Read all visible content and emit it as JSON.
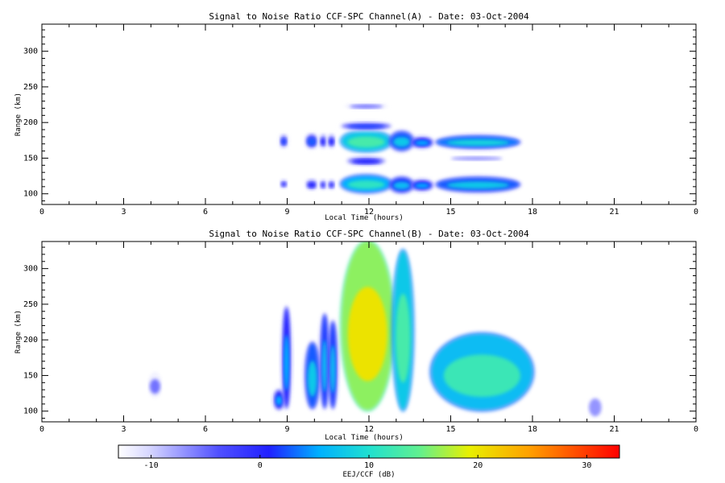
{
  "chart_data": [
    {
      "type": "heatmap",
      "title": "Signal to Noise Ratio CCF-SPC Channel(A) - Date: 03-Oct-2004",
      "xlabel": "Local Time (hours)",
      "ylabel": "Range (km)",
      "xlim": [
        0,
        24
      ],
      "ylim": [
        85,
        338
      ],
      "x_ticks": [
        "0",
        "3",
        "6",
        "9",
        "12",
        "15",
        "18",
        "21",
        "0"
      ],
      "y_ticks": [
        100,
        150,
        200,
        250,
        300
      ],
      "z_units": "dB",
      "blobs": [
        {
          "t0": 8.75,
          "t1": 9.0,
          "r0": 108,
          "r1": 120,
          "snr": -4
        },
        {
          "t0": 8.75,
          "t1": 9.0,
          "r0": 166,
          "r1": 182,
          "snr": -2
        },
        {
          "t0": 9.7,
          "t1": 10.1,
          "r0": 106,
          "r1": 120,
          "snr": -3
        },
        {
          "t0": 9.7,
          "t1": 10.1,
          "r0": 165,
          "r1": 183,
          "snr": -1
        },
        {
          "t0": 10.2,
          "t1": 10.45,
          "r0": 106,
          "r1": 120,
          "snr": -4
        },
        {
          "t0": 10.2,
          "t1": 10.45,
          "r0": 165,
          "r1": 183,
          "snr": -3
        },
        {
          "t0": 10.5,
          "t1": 10.75,
          "r0": 106,
          "r1": 120,
          "snr": -4
        },
        {
          "t0": 10.5,
          "t1": 10.75,
          "r0": 165,
          "r1": 183,
          "snr": -3
        },
        {
          "t0": 11.0,
          "t1": 12.8,
          "r0": 103,
          "r1": 125,
          "snr": 7
        },
        {
          "t0": 11.0,
          "t1": 12.8,
          "r0": 160,
          "r1": 188,
          "snr": 9
        },
        {
          "t0": 11.0,
          "t1": 12.8,
          "r0": 190,
          "r1": 200,
          "snr": -2
        },
        {
          "t0": 11.2,
          "t1": 12.6,
          "r0": 140,
          "r1": 152,
          "snr": -3
        },
        {
          "t0": 11.1,
          "t1": 12.7,
          "r0": 218,
          "r1": 228,
          "snr": -7
        },
        {
          "t0": 12.8,
          "t1": 13.6,
          "r0": 103,
          "r1": 122,
          "snr": 3
        },
        {
          "t0": 12.8,
          "t1": 13.6,
          "r0": 162,
          "r1": 186,
          "snr": 4
        },
        {
          "t0": 13.6,
          "t1": 14.3,
          "r0": 106,
          "r1": 118,
          "snr": 2
        },
        {
          "t0": 13.6,
          "t1": 14.3,
          "r0": 166,
          "r1": 178,
          "snr": 2
        },
        {
          "t0": 14.5,
          "t1": 17.5,
          "r0": 104,
          "r1": 122,
          "snr": 4
        },
        {
          "t0": 14.5,
          "t1": 17.5,
          "r0": 165,
          "r1": 180,
          "snr": 5
        },
        {
          "t0": 14.7,
          "t1": 17.2,
          "r0": 145,
          "r1": 155,
          "snr": -8
        }
      ]
    },
    {
      "type": "heatmap",
      "title": "Signal to Noise Ratio CCF-SPC Channel(B) - Date: 03-Oct-2004",
      "xlabel": "Local Time (hours)",
      "ylabel": "Range (km)",
      "xlim": [
        0,
        24
      ],
      "ylim": [
        85,
        338
      ],
      "x_ticks": [
        "0",
        "3",
        "6",
        "9",
        "12",
        "15",
        "18",
        "21",
        "0"
      ],
      "y_ticks": [
        100,
        150,
        200,
        250,
        300
      ],
      "z_units": "dB",
      "blobs": [
        {
          "t0": 3.9,
          "t1": 4.4,
          "r0": 118,
          "r1": 155,
          "snr": -7
        },
        {
          "t0": 8.55,
          "t1": 8.85,
          "r0": 104,
          "r1": 128,
          "snr": 2
        },
        {
          "t0": 8.85,
          "t1": 9.1,
          "r0": 105,
          "r1": 245,
          "snr": 2
        },
        {
          "t0": 9.7,
          "t1": 10.15,
          "r0": 105,
          "r1": 195,
          "snr": 4
        },
        {
          "t0": 10.25,
          "t1": 10.5,
          "r0": 105,
          "r1": 235,
          "snr": 3
        },
        {
          "t0": 10.55,
          "t1": 10.8,
          "r0": 105,
          "r1": 225,
          "snr": 3
        },
        {
          "t0": 11.0,
          "t1": 12.9,
          "r0": 102,
          "r1": 338,
          "snr": 18
        },
        {
          "t0": 12.9,
          "t1": 13.6,
          "r0": 102,
          "r1": 325,
          "snr": 9
        },
        {
          "t0": 14.3,
          "t1": 18.0,
          "r0": 102,
          "r1": 208,
          "snr": 8
        },
        {
          "t0": 20.0,
          "t1": 20.6,
          "r0": 85,
          "r1": 130,
          "snr": -8
        }
      ]
    }
  ],
  "colorbar": {
    "label": "EEJ/CCF (dB)",
    "min": -13,
    "max": 33,
    "ticks": [
      -10,
      0,
      10,
      20,
      30
    ]
  }
}
